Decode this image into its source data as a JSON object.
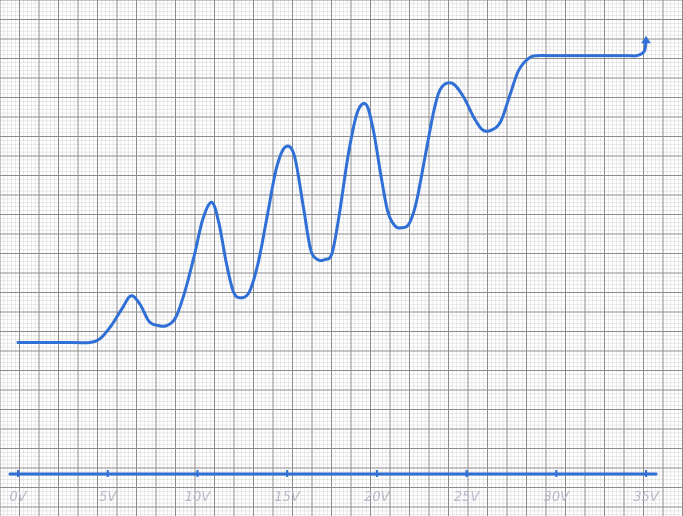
{
  "chart_data": {
    "type": "line",
    "title": "",
    "xlabel": "",
    "ylabel": "",
    "xlim": [
      0,
      35
    ],
    "ylim": [
      0,
      10
    ],
    "grid": true,
    "x_ticks": [
      {
        "value": 0,
        "label": "0V"
      },
      {
        "value": 5,
        "label": "5V"
      },
      {
        "value": 10,
        "label": "10V"
      },
      {
        "value": 15,
        "label": "15V"
      },
      {
        "value": 20,
        "label": "20V"
      },
      {
        "value": 25,
        "label": "25V"
      },
      {
        "value": 30,
        "label": "30V"
      },
      {
        "value": 35,
        "label": "35V"
      }
    ],
    "series": [
      {
        "color": "#2f6fd6",
        "x": [
          0,
          1,
          2,
          3,
          4,
          4.6,
          5.2,
          5.8,
          6.3,
          6.8,
          7.3,
          7.8,
          8.3,
          8.8,
          9.3,
          9.8,
          10.3,
          10.8,
          11.2,
          11.6,
          12.0,
          12.4,
          12.9,
          13.4,
          13.9,
          14.4,
          14.9,
          15.4,
          15.9,
          16.3,
          16.7,
          17.1,
          17.5,
          17.9,
          18.4,
          18.9,
          19.4,
          19.8,
          20.2,
          20.6,
          21.0,
          21.4,
          21.8,
          22.2,
          22.7,
          23.2,
          23.6,
          24.2,
          24.8,
          25.4,
          25.9,
          26.4,
          26.9,
          27.4,
          27.9,
          28.5,
          29.0,
          29.5,
          30.0,
          30.5,
          31.0,
          31.5,
          32.0,
          32.5,
          33.0,
          33.5,
          34.0,
          34.5,
          34.9,
          35.0
        ],
        "y": [
          3.0,
          3.0,
          3.0,
          3.0,
          3.0,
          3.1,
          3.4,
          3.8,
          4.1,
          3.9,
          3.5,
          3.4,
          3.4,
          3.6,
          4.2,
          5.0,
          5.9,
          6.3,
          5.8,
          4.9,
          4.2,
          4.05,
          4.2,
          4.9,
          6.0,
          7.1,
          7.6,
          7.4,
          6.2,
          5.2,
          4.95,
          4.95,
          5.1,
          6.0,
          7.4,
          8.4,
          8.6,
          8.0,
          7.0,
          6.1,
          5.75,
          5.7,
          5.8,
          6.3,
          7.4,
          8.5,
          9.0,
          9.1,
          8.8,
          8.3,
          8.0,
          8.0,
          8.2,
          8.8,
          9.4,
          9.7,
          9.75,
          9.75,
          9.75,
          9.75,
          9.75,
          9.75,
          9.75,
          9.75,
          9.75,
          9.75,
          9.75,
          9.75,
          9.85,
          10.1
        ]
      }
    ]
  }
}
